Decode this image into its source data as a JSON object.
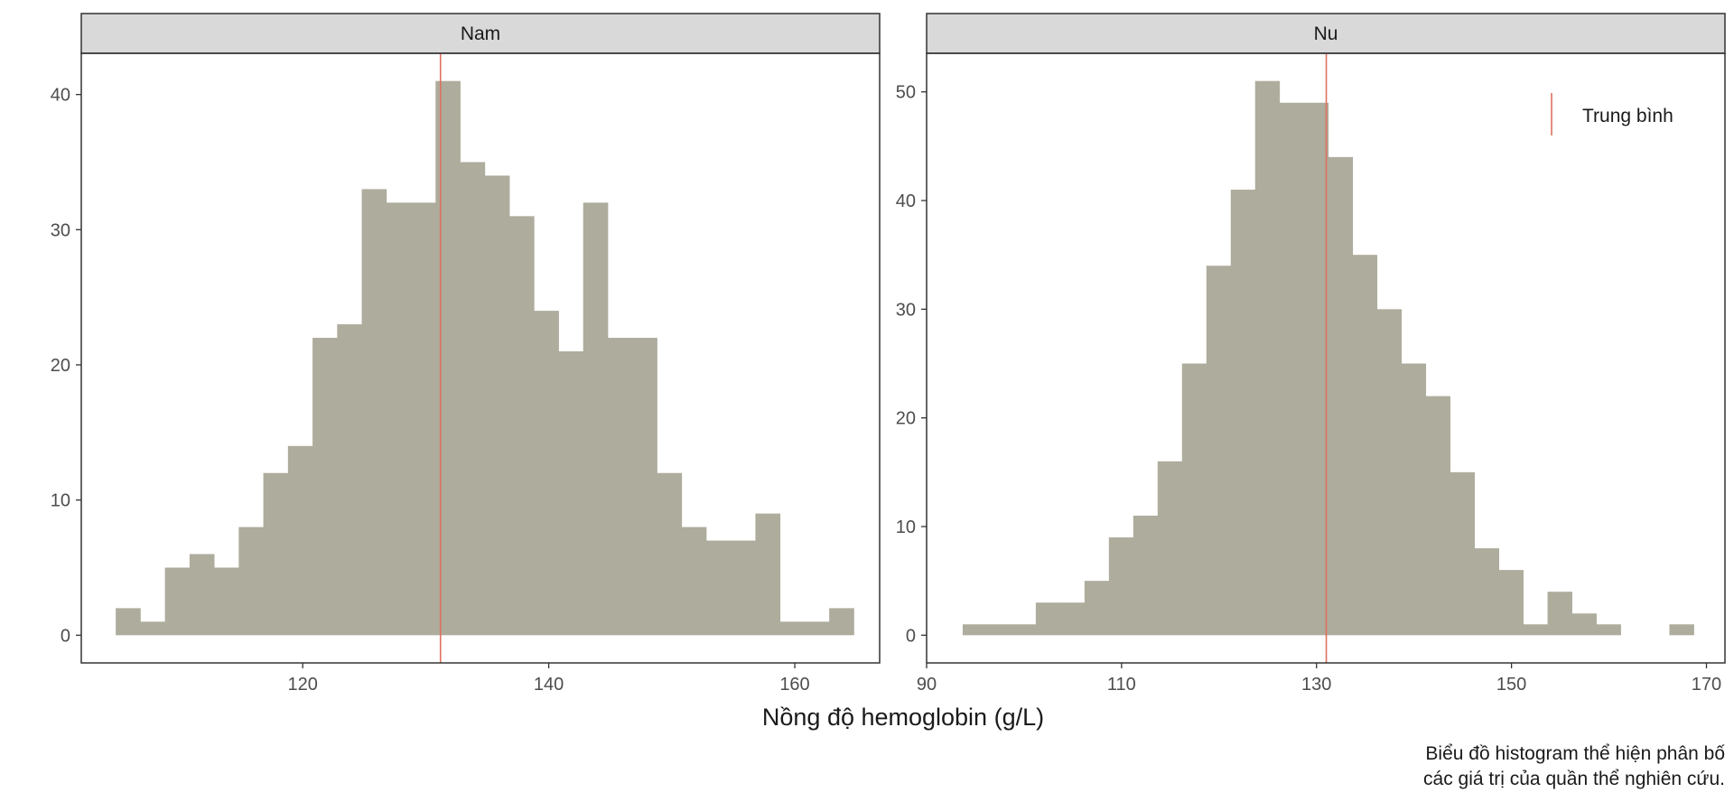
{
  "chart_data": {
    "type": "bar",
    "xlabel": "Nồng độ hemoglobin (g/L)",
    "caption": [
      "Biểu đồ histogram thể hiện phân bố",
      "các giá trị của quần thể nghiên cứu."
    ],
    "legend": {
      "label": "Trung bình",
      "color": "#e0705f",
      "placement": "top-right"
    },
    "bar_color": "#aeac9c",
    "panels": [
      {
        "strip": "Nam",
        "mean": 131.2,
        "xlim": [
          102,
          166.9
        ],
        "ylim": [
          -2.05,
          43.05
        ],
        "xticks": [
          120,
          140,
          160
        ],
        "yticks": [
          0,
          10,
          20,
          30,
          40
        ],
        "bin_start": 104.8,
        "bin_width": 2.0,
        "counts": [
          2,
          1,
          5,
          6,
          5,
          8,
          12,
          14,
          22,
          23,
          33,
          32,
          32,
          41,
          35,
          34,
          31,
          24,
          21,
          32,
          22,
          22,
          12,
          8,
          7,
          7,
          9,
          1,
          1,
          2
        ]
      },
      {
        "strip": "Nu",
        "mean": 131.0,
        "xlim": [
          90,
          171.9
        ],
        "ylim": [
          -2.55,
          53.55
        ],
        "xticks": [
          90,
          110,
          130,
          150,
          170
        ],
        "yticks": [
          0,
          10,
          20,
          30,
          40,
          50
        ],
        "bin_start": 93.7,
        "bin_width": 2.5,
        "counts": [
          1,
          1,
          1,
          3,
          3,
          5,
          9,
          11,
          16,
          25,
          34,
          41,
          51,
          49,
          49,
          44,
          35,
          30,
          25,
          22,
          15,
          8,
          6,
          1,
          4,
          2,
          1,
          0,
          0,
          1
        ]
      }
    ]
  }
}
